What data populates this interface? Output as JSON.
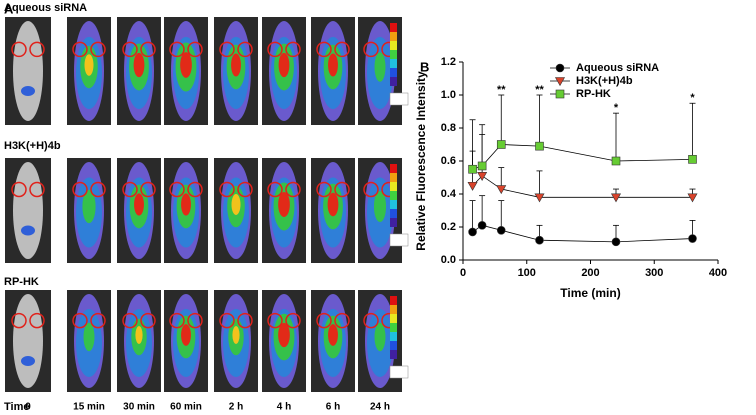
{
  "panel_a": {
    "label": "A",
    "rows": [
      "Aqueous siRNA",
      "H3K(+H)4b",
      "RP-HK"
    ],
    "time_title": "Time",
    "times": [
      "0",
      "15 min",
      "30 min",
      "60 min",
      "2 h",
      "4 h",
      "6 h",
      "24 h"
    ]
  },
  "chart_data": {
    "type": "line",
    "panel_label": "B",
    "x_label": "Time (min)",
    "y_label": "Relative Fluorescence Intensity",
    "x": [
      15,
      30,
      60,
      120,
      240,
      360
    ],
    "series": [
      {
        "name": "Aqueous siRNA",
        "color": "#000000",
        "marker": "circle",
        "values": [
          0.17,
          0.21,
          0.18,
          0.12,
          0.11,
          0.13
        ],
        "errors": [
          0.19,
          0.18,
          0.18,
          0.09,
          0.1,
          0.11
        ]
      },
      {
        "name": "H3K(+H)4b",
        "color": "#d9432b",
        "marker": "triangle-down",
        "values": [
          0.45,
          0.51,
          0.43,
          0.38,
          0.38,
          0.38
        ],
        "errors": [
          0.21,
          0.25,
          0.13,
          0.16,
          0.05,
          0.05
        ]
      },
      {
        "name": "RP-HK",
        "color": "#66cc33",
        "marker": "square",
        "values": [
          0.55,
          0.57,
          0.7,
          0.69,
          0.6,
          0.61
        ],
        "errors": [
          0.3,
          0.25,
          0.3,
          0.31,
          0.29,
          0.34
        ]
      }
    ],
    "annotations": [
      {
        "text": "**",
        "x": 60
      },
      {
        "text": "**",
        "x": 120
      },
      {
        "text": "*",
        "x": 240
      },
      {
        "text": "*",
        "x": 360
      }
    ],
    "xlim": [
      0,
      400
    ],
    "xticks": [
      0,
      100,
      200,
      300,
      400
    ],
    "ylim": [
      0,
      1.2
    ],
    "yticks": [
      {
        "value": 0,
        "label": "0.0"
      },
      0.2,
      0.4,
      0.6,
      0.8,
      {
        "value": 1,
        "label": "1.0"
      },
      1.2
    ],
    "legend": "top-right"
  }
}
